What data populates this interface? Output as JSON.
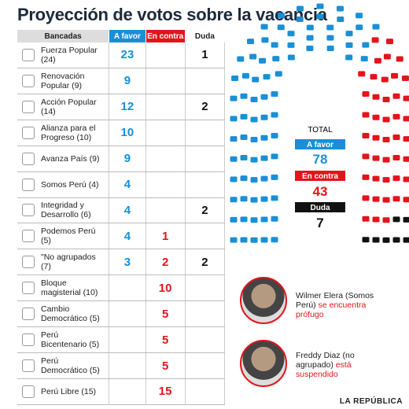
{
  "title": "Proyección de votos sobre la vacancia",
  "table": {
    "headers": [
      "Bancadas",
      "A favor",
      "En contra",
      "Duda"
    ],
    "rows": [
      {
        "name": "Fuerza Popular (24)",
        "a_favor": 23,
        "en_contra": null,
        "duda": 1
      },
      {
        "name": "Renovación Popular (9)",
        "a_favor": 9,
        "en_contra": null,
        "duda": null
      },
      {
        "name": "Acción Popular (14)",
        "a_favor": 12,
        "en_contra": null,
        "duda": 2
      },
      {
        "name": "Alianza para el Progreso (10)",
        "a_favor": 10,
        "en_contra": null,
        "duda": null
      },
      {
        "name": "Avanza País (9)",
        "a_favor": 9,
        "en_contra": null,
        "duda": null
      },
      {
        "name": "Somos Perú (4)",
        "a_favor": 4,
        "en_contra": null,
        "duda": null
      },
      {
        "name": "Integridad y Desarrollo (6)",
        "a_favor": 4,
        "en_contra": null,
        "duda": 2
      },
      {
        "name": "Podemos Perú (5)",
        "a_favor": 4,
        "en_contra": 1,
        "duda": null
      },
      {
        "name": "\"No agrupados (7)",
        "a_favor": 3,
        "en_contra": 2,
        "duda": 2
      },
      {
        "name": "Bloque magisterial (10)",
        "a_favor": null,
        "en_contra": 10,
        "duda": null
      },
      {
        "name": "Cambio Democrático (5)",
        "a_favor": null,
        "en_contra": 5,
        "duda": null
      },
      {
        "name": "Perú Bicentenario (5)",
        "a_favor": null,
        "en_contra": 5,
        "duda": null
      },
      {
        "name": "Perú Democrático (5)",
        "a_favor": null,
        "en_contra": 5,
        "duda": null
      },
      {
        "name": "Perú Libre (15)",
        "a_favor": null,
        "en_contra": 15,
        "duda": null
      }
    ]
  },
  "summary": {
    "label": "TOTAL",
    "a_favor_label": "A favor",
    "a_favor": 78,
    "en_contra_label": "En contra",
    "en_contra": 43,
    "duda_label": "Duda",
    "duda": 7
  },
  "notes": [
    {
      "name": "Wilmer Elera (Somos Perú)",
      "status": "se encuentra prófugo"
    },
    {
      "name": "Freddy Diaz (no agrupado)",
      "status": "está suspendido"
    }
  ],
  "source": "LA REPÚBLICA"
}
